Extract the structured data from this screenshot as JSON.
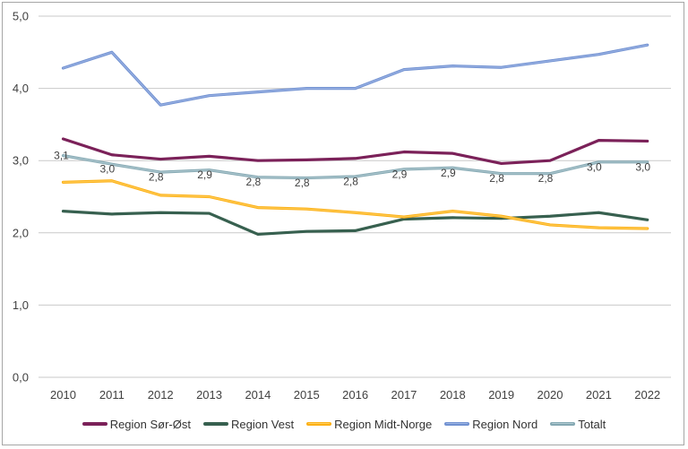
{
  "chart_data": {
    "type": "line",
    "title": "",
    "xlabel": "",
    "ylabel": "",
    "grid": true,
    "legend_position": "bottom",
    "decimal_separator": ",",
    "categories": [
      "2010",
      "2011",
      "2012",
      "2013",
      "2014",
      "2015",
      "2016",
      "2017",
      "2018",
      "2019",
      "2020",
      "2021",
      "2022"
    ],
    "y_axis": {
      "min": 0,
      "max": 5,
      "step": 1,
      "tick_labels": [
        "0,0",
        "1,0",
        "2,0",
        "3,0",
        "4,0",
        "5,0"
      ]
    },
    "series": [
      {
        "name": "Region Sør-Øst",
        "color": "#7B2159",
        "values": [
          3.3,
          3.08,
          3.02,
          3.06,
          3.0,
          3.01,
          3.03,
          3.12,
          3.1,
          2.96,
          3.0,
          3.28,
          3.27
        ]
      },
      {
        "name": "Region Vest",
        "color": "#37604F",
        "values": [
          2.3,
          2.26,
          2.28,
          2.27,
          1.98,
          2.02,
          2.03,
          2.19,
          2.21,
          2.2,
          2.23,
          2.28,
          2.18
        ]
      },
      {
        "name": "Region Midt-Norge",
        "color": "#FCB016",
        "highlight": "#FFCE5C",
        "values": [
          2.7,
          2.72,
          2.52,
          2.5,
          2.35,
          2.33,
          2.28,
          2.22,
          2.3,
          2.23,
          2.11,
          2.07,
          2.06
        ]
      },
      {
        "name": "Region Nord",
        "color": "#7191D1",
        "highlight": "#9DB5E4",
        "values": [
          4.28,
          4.5,
          3.77,
          3.9,
          3.95,
          4.0,
          4.0,
          4.26,
          4.31,
          4.29,
          4.38,
          4.47,
          4.6
        ]
      },
      {
        "name": "Totalt",
        "color": "#84A8B2",
        "highlight": "#B0C9D0",
        "values": [
          3.07,
          2.95,
          2.84,
          2.87,
          2.77,
          2.76,
          2.78,
          2.88,
          2.9,
          2.82,
          2.82,
          2.98,
          2.98
        ],
        "data_labels": [
          "3,1",
          "3,0",
          "2,8",
          "2,9",
          "2,8",
          "2,8",
          "2,8",
          "2,9",
          "2,9",
          "2,8",
          "2,8",
          "3,0",
          "3,0"
        ]
      }
    ]
  },
  "colors": {
    "frame_border": "#a6a6a6",
    "gridline": "#c9c9c9",
    "axis_text": "#404040",
    "data_label_text": "#404040",
    "background": "#ffffff"
  }
}
